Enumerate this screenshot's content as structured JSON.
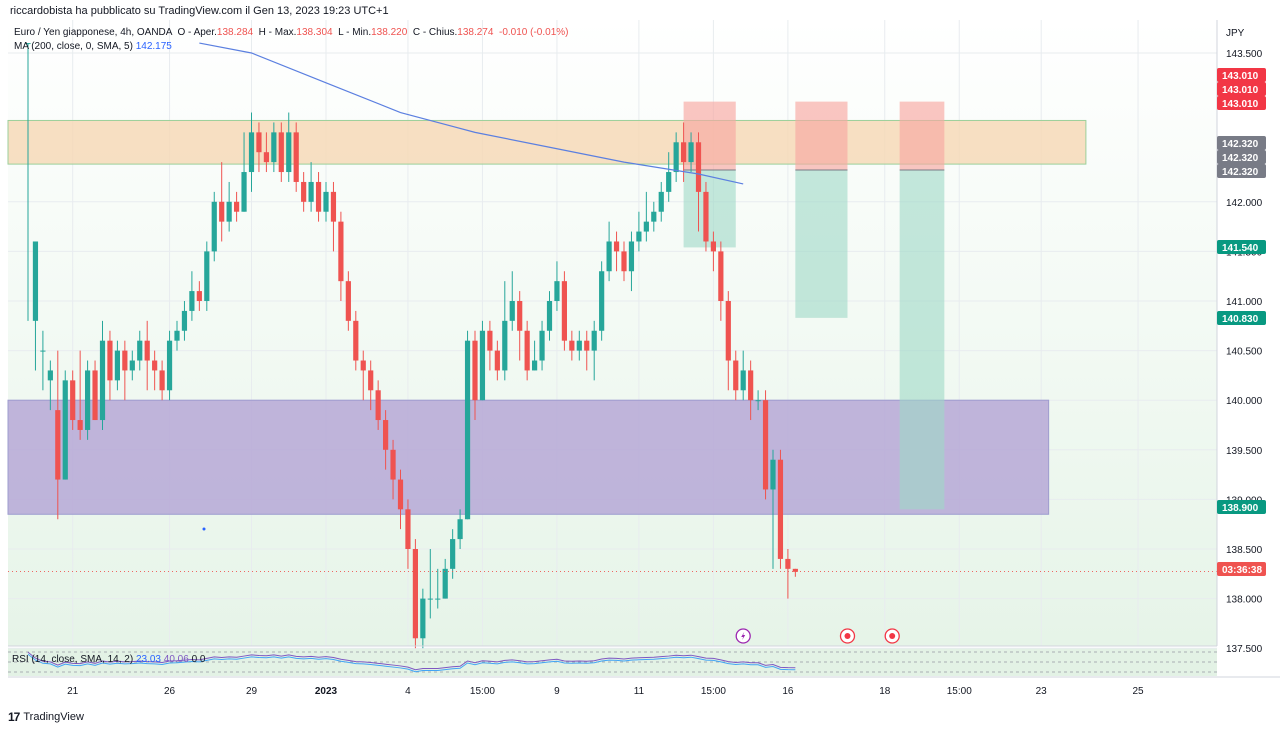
{
  "header": {
    "published_by": "riccardobista ha pubblicato su TradingView.com il Gen 13, 2023 19:23 UTC+1"
  },
  "legend": {
    "symbol": "Euro / Yen giapponese, 4h, OANDA",
    "open_label": "O - Aper.",
    "open": "138.284",
    "high_label": "H - Max.",
    "high": "138.304",
    "low_label": "L - Min.",
    "low": "138.220",
    "close_label": "C - Chius.",
    "close": "138.274",
    "change": "-0.010 (-0.01%)",
    "ma_label": "MA (200, close, 0, SMA, 5)",
    "ma_value": "142.175"
  },
  "rsi": {
    "label": "RSI (14, close, SMA, 14, 2)",
    "v1": "23.03",
    "v2": "40.06",
    "v3": "0",
    "v4": "0"
  },
  "footer": {
    "brand": "TradingView"
  },
  "colors": {
    "up": "#26a69a",
    "down": "#ef5350",
    "ma": "#5b7fe0",
    "price_tag": "#ef5350",
    "bg_gradient": "#e6f4e8"
  },
  "chart_data": {
    "type": "candlestick",
    "currency": "JPY",
    "y_ticks": [
      "143.500",
      "142.000",
      "141.500",
      "141.000",
      "140.500",
      "140.000",
      "139.500",
      "139.000",
      "138.500",
      "138.000",
      "137.500"
    ],
    "ylim": [
      137.5,
      143.7
    ],
    "x_ticks": [
      {
        "label": "21",
        "i": 6
      },
      {
        "label": "26",
        "i": 19
      },
      {
        "label": "29",
        "i": 30
      },
      {
        "label": "2023",
        "i": 40
      },
      {
        "label": "4",
        "i": 51
      },
      {
        "label": "15:00",
        "i": 61
      },
      {
        "label": "9",
        "i": 71
      },
      {
        "label": "11",
        "i": 82
      },
      {
        "label": "15:00",
        "i": 92
      },
      {
        "label": "16",
        "i": 102
      },
      {
        "label": "18",
        "i": 115
      },
      {
        "label": "15:00",
        "i": 125
      },
      {
        "label": "23",
        "i": 136
      },
      {
        "label": "25",
        "i": 149
      }
    ],
    "price_labels": [
      {
        "label": "143.010",
        "value": 143.01,
        "color": "#f23645"
      },
      {
        "label": "143.010",
        "value": 143.01,
        "color": "#f23645"
      },
      {
        "label": "143.010",
        "value": 143.01,
        "color": "#f23645"
      },
      {
        "label": "142.320",
        "value": 142.32,
        "color": "#787b86"
      },
      {
        "label": "142.320",
        "value": 142.32,
        "color": "#787b86"
      },
      {
        "label": "142.320",
        "value": 142.32,
        "color": "#787b86"
      },
      {
        "label": "141.540",
        "value": 141.54,
        "color": "#089981"
      },
      {
        "label": "140.830",
        "value": 140.83,
        "color": "#089981"
      },
      {
        "label": "138.900",
        "value": 138.9,
        "color": "#089981"
      },
      {
        "label": "03:36:38",
        "value": 138.274,
        "color": "#ef5350"
      }
    ],
    "zones": [
      {
        "name": "resistance-zone",
        "from_i": 0,
        "to_i": 142,
        "y_top": 142.82,
        "y_bottom": 142.38,
        "color": "#f6d9b7"
      },
      {
        "name": "support-zone",
        "from_i": 0,
        "to_i": 137,
        "y_top": 140.0,
        "y_bottom": 138.85,
        "color": "#b6a8d6"
      }
    ],
    "positions": [
      {
        "from_i": 88,
        "to_i": 95,
        "entry": 142.32,
        "stop": 143.01,
        "target": 141.54
      },
      {
        "from_i": 103,
        "to_i": 110,
        "entry": 142.32,
        "stop": 143.01,
        "target": 140.83
      },
      {
        "from_i": 117,
        "to_i": 123,
        "entry": 142.32,
        "stop": 143.01,
        "target": 138.9
      }
    ],
    "candles": [
      [
        143.6,
        143.6,
        143.6,
        140.8
      ],
      [
        140.8,
        141.6,
        141.6,
        140.3
      ],
      [
        140.5,
        140.5,
        140.7,
        140.1
      ],
      [
        140.2,
        140.3,
        140.4,
        139.9
      ],
      [
        139.9,
        139.2,
        140.5,
        138.8
      ],
      [
        139.2,
        140.2,
        140.3,
        139.2
      ],
      [
        140.2,
        139.8,
        140.3,
        139.7
      ],
      [
        139.8,
        139.7,
        140.5,
        139.6
      ],
      [
        139.7,
        140.3,
        140.4,
        139.6
      ],
      [
        140.3,
        139.8,
        140.4,
        139.8
      ],
      [
        139.8,
        140.6,
        140.8,
        139.7
      ],
      [
        140.6,
        140.2,
        140.7,
        140.0
      ],
      [
        140.2,
        140.5,
        140.6,
        140.1
      ],
      [
        140.5,
        140.3,
        140.6,
        140.0
      ],
      [
        140.3,
        140.4,
        140.5,
        140.2
      ],
      [
        140.4,
        140.6,
        140.7,
        140.3
      ],
      [
        140.6,
        140.4,
        140.8,
        140.1
      ],
      [
        140.4,
        140.3,
        140.5,
        140.1
      ],
      [
        140.3,
        140.1,
        140.4,
        140.0
      ],
      [
        140.1,
        140.6,
        140.7,
        140.0
      ],
      [
        140.6,
        140.7,
        140.8,
        140.5
      ],
      [
        140.7,
        140.9,
        141.0,
        140.6
      ],
      [
        140.9,
        141.1,
        141.3,
        140.8
      ],
      [
        141.1,
        141.0,
        141.2,
        140.9
      ],
      [
        141.0,
        141.5,
        141.6,
        140.9
      ],
      [
        141.5,
        142.0,
        142.1,
        141.4
      ],
      [
        142.0,
        141.8,
        142.4,
        141.6
      ],
      [
        141.8,
        142.0,
        142.2,
        141.7
      ],
      [
        142.0,
        141.9,
        142.1,
        141.8
      ],
      [
        141.9,
        142.3,
        142.7,
        141.9
      ],
      [
        142.3,
        142.7,
        142.9,
        142.1
      ],
      [
        142.7,
        142.5,
        142.8,
        142.3
      ],
      [
        142.5,
        142.4,
        142.7,
        142.3
      ],
      [
        142.4,
        142.7,
        142.8,
        142.3
      ],
      [
        142.7,
        142.3,
        142.8,
        142.2
      ],
      [
        142.3,
        142.7,
        142.9,
        142.2
      ],
      [
        142.7,
        142.2,
        142.8,
        142.1
      ],
      [
        142.2,
        142.0,
        142.3,
        141.9
      ],
      [
        142.0,
        142.2,
        142.4,
        141.9
      ],
      [
        142.2,
        141.9,
        142.3,
        141.8
      ],
      [
        141.9,
        142.1,
        142.2,
        141.8
      ],
      [
        142.1,
        141.8,
        142.2,
        141.5
      ],
      [
        141.8,
        141.2,
        141.9,
        141.0
      ],
      [
        141.2,
        140.8,
        141.3,
        140.7
      ],
      [
        140.8,
        140.4,
        140.9,
        140.3
      ],
      [
        140.4,
        140.3,
        140.5,
        140.0
      ],
      [
        140.3,
        140.1,
        140.4,
        139.9
      ],
      [
        140.1,
        139.8,
        140.2,
        139.7
      ],
      [
        139.8,
        139.5,
        139.9,
        139.3
      ],
      [
        139.5,
        139.2,
        139.6,
        139.0
      ],
      [
        139.2,
        138.9,
        139.3,
        138.7
      ],
      [
        138.9,
        138.5,
        139.0,
        138.3
      ],
      [
        138.5,
        137.6,
        138.6,
        137.5
      ],
      [
        137.6,
        138.0,
        138.1,
        137.5
      ],
      [
        138.0,
        138.0,
        138.5,
        137.8
      ],
      [
        138.0,
        138.0,
        138.3,
        137.9
      ],
      [
        138.0,
        138.3,
        138.4,
        138.0
      ],
      [
        138.3,
        138.6,
        138.7,
        138.2
      ],
      [
        138.6,
        138.8,
        138.9,
        138.5
      ],
      [
        138.8,
        140.6,
        140.7,
        138.8
      ],
      [
        140.6,
        140.0,
        140.7,
        139.8
      ],
      [
        140.0,
        140.7,
        140.8,
        140.0
      ],
      [
        140.7,
        140.5,
        140.8,
        140.3
      ],
      [
        140.5,
        140.3,
        140.6,
        140.2
      ],
      [
        140.3,
        140.8,
        141.2,
        140.2
      ],
      [
        140.8,
        141.0,
        141.3,
        140.7
      ],
      [
        141.0,
        140.7,
        141.1,
        140.4
      ],
      [
        140.7,
        140.3,
        140.8,
        140.2
      ],
      [
        140.3,
        140.4,
        140.6,
        140.3
      ],
      [
        140.4,
        140.7,
        140.8,
        140.3
      ],
      [
        140.7,
        141.0,
        141.1,
        140.6
      ],
      [
        141.0,
        141.2,
        141.4,
        140.9
      ],
      [
        141.2,
        140.6,
        141.3,
        140.5
      ],
      [
        140.6,
        140.5,
        140.7,
        140.4
      ],
      [
        140.5,
        140.6,
        140.7,
        140.4
      ],
      [
        140.6,
        140.5,
        140.7,
        140.3
      ],
      [
        140.5,
        140.7,
        140.8,
        140.2
      ],
      [
        140.7,
        141.3,
        141.4,
        140.6
      ],
      [
        141.3,
        141.6,
        141.8,
        141.2
      ],
      [
        141.6,
        141.5,
        141.7,
        141.3
      ],
      [
        141.5,
        141.3,
        141.6,
        141.2
      ],
      [
        141.3,
        141.6,
        141.7,
        141.1
      ],
      [
        141.6,
        141.7,
        141.9,
        141.5
      ],
      [
        141.7,
        141.8,
        142.1,
        141.6
      ],
      [
        141.8,
        141.9,
        142.0,
        141.7
      ],
      [
        141.9,
        142.1,
        142.2,
        141.8
      ],
      [
        142.1,
        142.3,
        142.5,
        142.0
      ],
      [
        142.3,
        142.6,
        142.7,
        142.2
      ],
      [
        142.6,
        142.4,
        142.8,
        142.2
      ],
      [
        142.4,
        142.6,
        142.7,
        142.3
      ],
      [
        142.6,
        142.1,
        142.7,
        141.7
      ],
      [
        142.1,
        141.6,
        142.2,
        141.5
      ],
      [
        141.6,
        141.5,
        141.7,
        141.3
      ],
      [
        141.5,
        141.0,
        141.6,
        140.8
      ],
      [
        141.0,
        140.4,
        141.1,
        140.1
      ],
      [
        140.4,
        140.1,
        140.5,
        140.0
      ],
      [
        140.1,
        140.3,
        140.5,
        140.0
      ],
      [
        140.3,
        140.0,
        140.4,
        139.8
      ],
      [
        140.0,
        140.0,
        140.1,
        139.9
      ],
      [
        140.0,
        139.1,
        140.1,
        139.0
      ],
      [
        139.1,
        139.4,
        139.5,
        138.3
      ],
      [
        139.4,
        138.4,
        139.5,
        138.3
      ],
      [
        138.4,
        138.3,
        138.5,
        138.0
      ],
      [
        138.3,
        138.27,
        138.3,
        138.22
      ]
    ],
    "ma_points": [
      [
        23,
        143.6
      ],
      [
        30,
        143.5
      ],
      [
        40,
        143.2
      ],
      [
        50,
        142.9
      ],
      [
        60,
        142.7
      ],
      [
        70,
        142.55
      ],
      [
        80,
        142.4
      ],
      [
        90,
        142.28
      ],
      [
        96,
        142.18
      ]
    ],
    "annotations": [
      {
        "type": "lightning",
        "i": 96
      },
      {
        "type": "target",
        "i": 110
      },
      {
        "type": "target",
        "i": 116
      }
    ]
  }
}
